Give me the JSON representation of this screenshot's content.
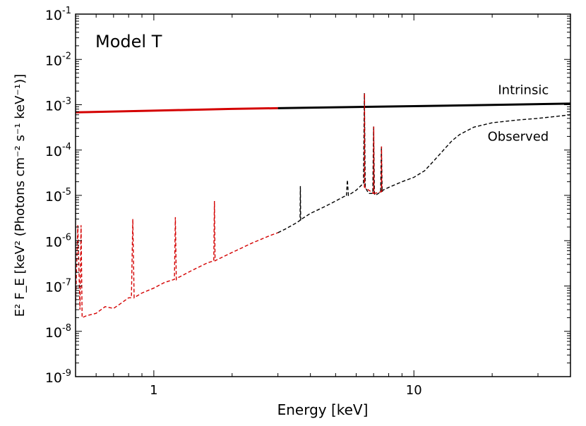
{
  "chart_data": {
    "type": "line",
    "title": "Model T",
    "xlabel": "Energy [keV]",
    "ylabel": "E² F_E [keV² (Photons cm⁻² s⁻¹ keV⁻¹)]",
    "xscale": "log",
    "yscale": "log",
    "xlim": [
      0.5,
      40
    ],
    "ylim": [
      1e-09,
      0.1
    ],
    "x_ticks": [
      {
        "value": 1,
        "label": "1"
      },
      {
        "value": 10,
        "label": "10"
      }
    ],
    "y_ticks": [
      {
        "value": 1e-09,
        "base": "10",
        "exp": "-9"
      },
      {
        "value": 1e-08,
        "base": "10",
        "exp": "-8"
      },
      {
        "value": 1e-07,
        "base": "10",
        "exp": "-7"
      },
      {
        "value": 1e-06,
        "base": "10",
        "exp": "-6"
      },
      {
        "value": 1e-05,
        "base": "10",
        "exp": "-5"
      },
      {
        "value": 0.0001,
        "base": "10",
        "exp": "-4"
      },
      {
        "value": 0.001,
        "base": "10",
        "exp": "-3"
      },
      {
        "value": 0.01,
        "base": "10",
        "exp": "-2"
      },
      {
        "value": 0.1,
        "base": "10",
        "exp": "-1"
      }
    ],
    "series": [
      {
        "name": "Intrinsic",
        "style": "solid",
        "segments": [
          {
            "color": "#d40000",
            "x": [
              0.5,
              1.0,
              2.0,
              3.0
            ],
            "y": [
              0.00068,
              0.00074,
              0.00081,
              0.00084
            ]
          },
          {
            "color": "#000000",
            "x": [
              3.0,
              5.0,
              10.0,
              20.0,
              40.0
            ],
            "y": [
              0.00084,
              0.00088,
              0.00093,
              0.00099,
              0.00106
            ]
          }
        ]
      },
      {
        "name": "Observed",
        "style": "dashed",
        "segments": [
          {
            "color": "#d40000",
            "x": [
              0.5,
              0.51,
              0.52,
              0.525,
              0.53,
              0.55,
              0.6,
              0.65,
              0.7,
              0.75,
              0.8,
              0.82,
              0.83,
              0.84,
              0.86,
              0.9,
              1.0,
              1.1,
              1.2,
              1.21,
              1.22,
              1.23,
              1.26,
              1.4,
              1.6,
              1.7,
              1.71,
              1.72,
              1.75,
              2.0,
              2.4,
              2.8,
              3.0
            ],
            "y": [
              3.5e-08,
              2.2e-06,
              3e-08,
              2.2e-06,
              2e-08,
              2.2e-08,
              2.5e-08,
              3.5e-08,
              3.2e-08,
              4.2e-08,
              5.5e-08,
              5.5e-08,
              3e-06,
              5.5e-08,
              6e-08,
              7e-08,
              9e-08,
              1.2e-07,
              1.4e-07,
              3.3e-06,
              1.4e-07,
              1.5e-07,
              1.6e-07,
              2.2e-07,
              3.2e-07,
              3.6e-07,
              7.5e-06,
              3.6e-07,
              3.8e-07,
              5.5e-07,
              9e-07,
              1.3e-06,
              1.5e-06
            ]
          },
          {
            "color": "#000000",
            "x": [
              3.0,
              3.2,
              3.5,
              3.65,
              3.66,
              3.67,
              3.7,
              4.0,
              4.5,
              5.0,
              5.4,
              5.5,
              5.55,
              5.6,
              6.0,
              6.3,
              6.4,
              6.45,
              6.5,
              6.7,
              6.95,
              7.0,
              7.05,
              7.1,
              7.3,
              7.45,
              7.5,
              7.55,
              7.6,
              8.0,
              9.0,
              10.0,
              11.0,
              12.0,
              13.0,
              14.0,
              15.0,
              17.0,
              20.0,
              25.0,
              30.0,
              35.0,
              40.0
            ],
            "y": [
              1.5e-06,
              1.8e-06,
              2.4e-06,
              2.8e-06,
              1.6e-05,
              2.8e-06,
              3e-06,
              4e-06,
              5.5e-06,
              7.5e-06,
              9.5e-06,
              9.5e-06,
              2.2e-05,
              1e-05,
              1.3e-05,
              1.7e-05,
              1.8e-05,
              0.0018,
              1.5e-05,
              1.1e-05,
              1.1e-05,
              0.00033,
              1.1e-05,
              1e-05,
              1.1e-05,
              1.2e-05,
              0.00012,
              1.2e-05,
              1.3e-05,
              1.5e-05,
              2e-05,
              2.5e-05,
              3.5e-05,
              6e-05,
              0.0001,
              0.00016,
              0.00022,
              0.00032,
              0.0004,
              0.00046,
              0.0005,
              0.00055,
              0.0006
            ]
          },
          {
            "color": "#d40000",
            "x": [
              6.45,
              6.46,
              6.47,
              7.0,
              7.01,
              7.02,
              7.5,
              7.51,
              7.52
            ],
            "y": [
              1.5e-05,
              0.0018,
              1.5e-05,
              1.1e-05,
              0.00033,
              1.1e-05,
              1.2e-05,
              0.00012,
              1.2e-05
            ]
          }
        ]
      }
    ],
    "annotations": [
      {
        "text": "Intrinsic",
        "x": 33,
        "y": 0.0017
      },
      {
        "text": "Observed",
        "x": 33,
        "y": 0.00016
      }
    ]
  }
}
